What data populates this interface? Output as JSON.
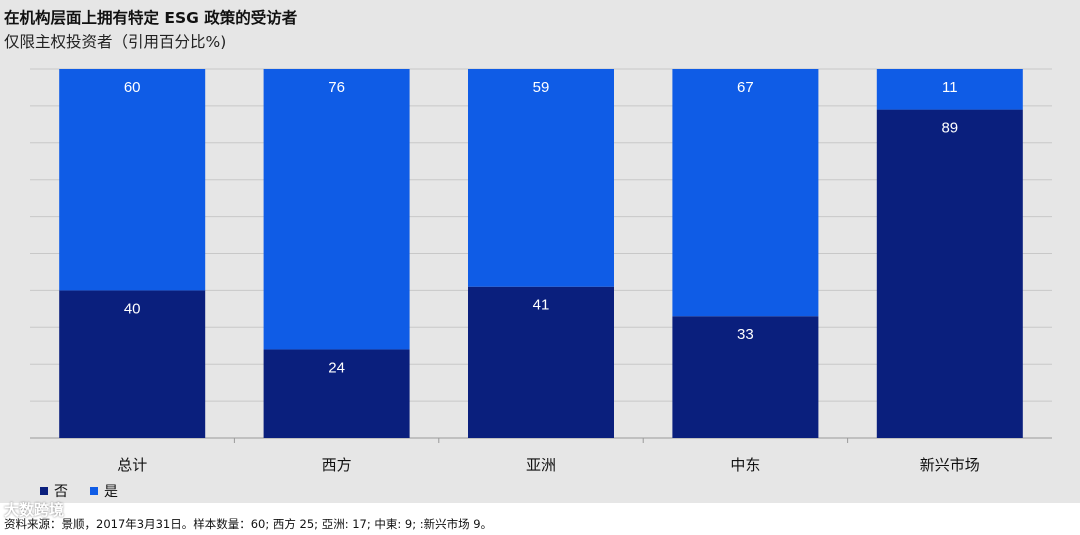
{
  "title": "在机构层面上拥有特定 ESG 政策的受访者",
  "subtitle": "仅限主权投资者（引用百分比%)",
  "legend": [
    {
      "label": "否",
      "color": "#0a1f7d"
    },
    {
      "label": "是",
      "color": "#0f5ce6"
    }
  ],
  "source": "资料来源：景顺，2017年3月31日。样本数量：60; 西方 25; 亞洲: 17; 中東: 9; :新兴市场 9。",
  "watermark": "大数跨境",
  "chart_data": {
    "type": "bar",
    "stacked": true,
    "categories": [
      "总计",
      "西方",
      "亚洲",
      "中东",
      "新兴市场"
    ],
    "series": [
      {
        "name": "否",
        "values": [
          40,
          24,
          41,
          33,
          89
        ],
        "color": "#0a1f7d"
      },
      {
        "name": "是",
        "values": [
          60,
          76,
          59,
          67,
          11
        ],
        "color": "#0f5ce6"
      }
    ],
    "ylim": [
      0,
      100
    ],
    "grid": true,
    "legend_position": "bottom-left"
  }
}
